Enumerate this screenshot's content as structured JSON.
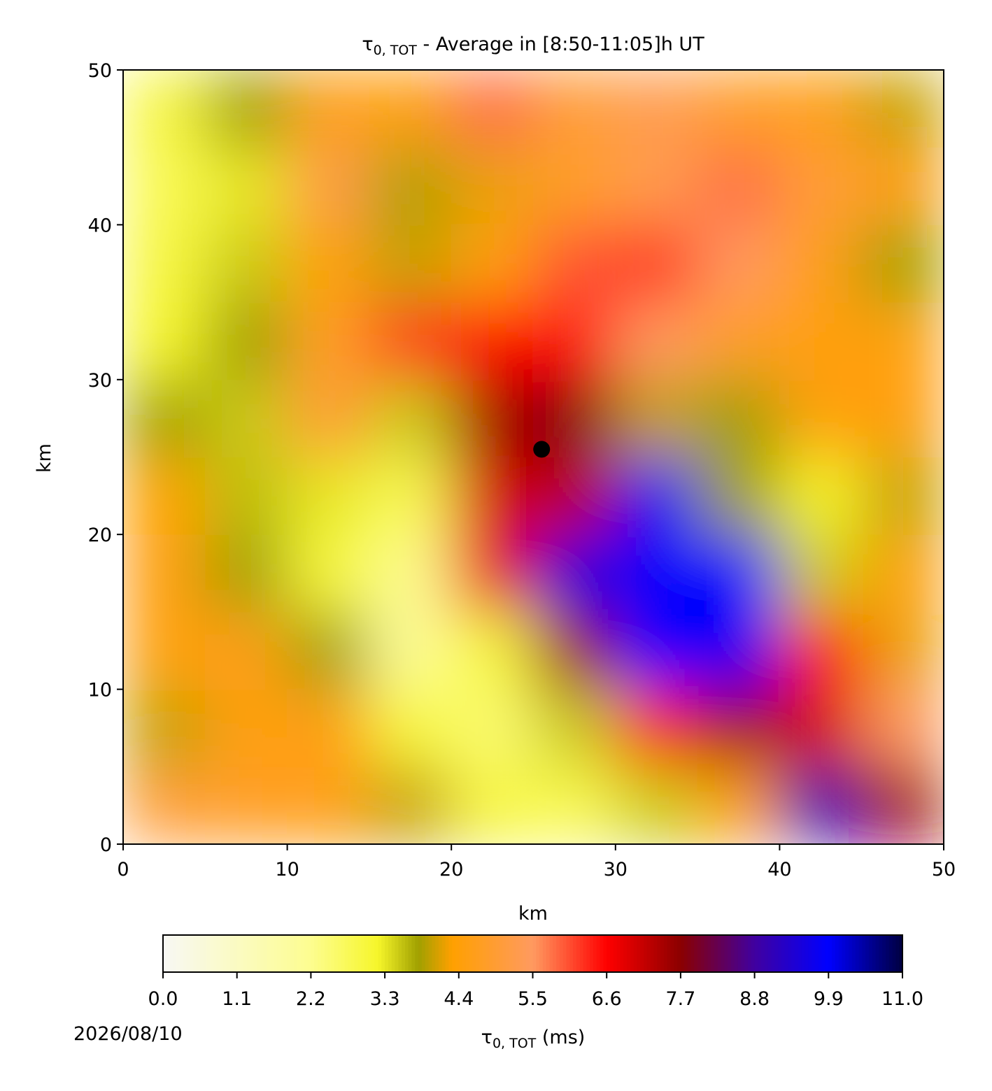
{
  "chart_data": {
    "type": "contourf",
    "title_symbol": "τ",
    "title_subscript": "0, TOT",
    "title": " - Average in [8:50-11:05]h UT",
    "xlabel": "km",
    "ylabel": "km",
    "xlim": [
      0,
      50
    ],
    "ylim": [
      0,
      50
    ],
    "xticks": [
      0,
      10,
      20,
      30,
      40,
      50
    ],
    "yticks": [
      0,
      10,
      20,
      30,
      40,
      50
    ],
    "x": [
      2.5,
      7.5,
      12.5,
      17.5,
      22.5,
      27.5,
      32.5,
      37.5,
      42.5,
      47.5
    ],
    "y": [
      2.5,
      7.5,
      12.5,
      17.5,
      22.5,
      27.5,
      32.5,
      37.5,
      42.5,
      47.5
    ],
    "z": [
      [
        5.0,
        4.8,
        4.6,
        4.0,
        3.0,
        2.8,
        3.5,
        4.5,
        9.0,
        7.5
      ],
      [
        4.0,
        4.5,
        4.6,
        3.0,
        2.5,
        3.5,
        6.5,
        7.5,
        7.0,
        5.5
      ],
      [
        4.4,
        4.6,
        3.8,
        2.0,
        3.0,
        7.5,
        9.9,
        9.8,
        6.5,
        4.2
      ],
      [
        4.5,
        3.8,
        3.0,
        2.2,
        6.8,
        9.5,
        9.9,
        9.9,
        3.5,
        4.4
      ],
      [
        4.3,
        3.6,
        3.3,
        2.8,
        7.0,
        7.2,
        9.8,
        3.8,
        3.2,
        4.0
      ],
      [
        3.8,
        3.5,
        5.0,
        3.5,
        7.5,
        7.8,
        4.0,
        3.8,
        4.4,
        4.5
      ],
      [
        3.2,
        3.8,
        4.8,
        6.2,
        6.6,
        6.5,
        5.5,
        4.8,
        4.5,
        4.4
      ],
      [
        3.0,
        3.5,
        4.3,
        4.0,
        4.5,
        6.0,
        6.2,
        5.5,
        4.6,
        3.8
      ],
      [
        2.8,
        3.3,
        5.2,
        3.9,
        4.2,
        4.8,
        5.3,
        5.8,
        5.0,
        4.6
      ],
      [
        3.0,
        3.8,
        4.6,
        4.5,
        5.8,
        5.0,
        5.3,
        4.8,
        4.6,
        4.0
      ]
    ],
    "marker": {
      "x": 25.5,
      "y": 25.5,
      "color": "#000000"
    },
    "clim": [
      0,
      11
    ],
    "colorscale": [
      [
        0,
        "#f8f8f4"
      ],
      [
        2.2,
        "#fdfd90"
      ],
      [
        3.2,
        "#f6f62a"
      ],
      [
        3.8,
        "#a0a000"
      ],
      [
        4.3,
        "#ffa000"
      ],
      [
        5.5,
        "#ff9a60"
      ],
      [
        6.6,
        "#ff0000"
      ],
      [
        7.7,
        "#8b0000"
      ],
      [
        8.8,
        "#4000a0"
      ],
      [
        9.9,
        "#0000ff"
      ],
      [
        11,
        "#000040"
      ]
    ],
    "cticks": [
      {
        "value": 0,
        "label": "0.0"
      },
      1.1,
      2.2,
      3.3,
      4.4,
      5.5,
      6.6,
      7.7,
      8.8,
      9.9,
      {
        "value": 11,
        "label": "11.0"
      }
    ],
    "colorbar_symbol": "τ",
    "colorbar_subscript": "0, TOT",
    "colorbar_label": " (ms)",
    "date": "2026/08/10"
  }
}
